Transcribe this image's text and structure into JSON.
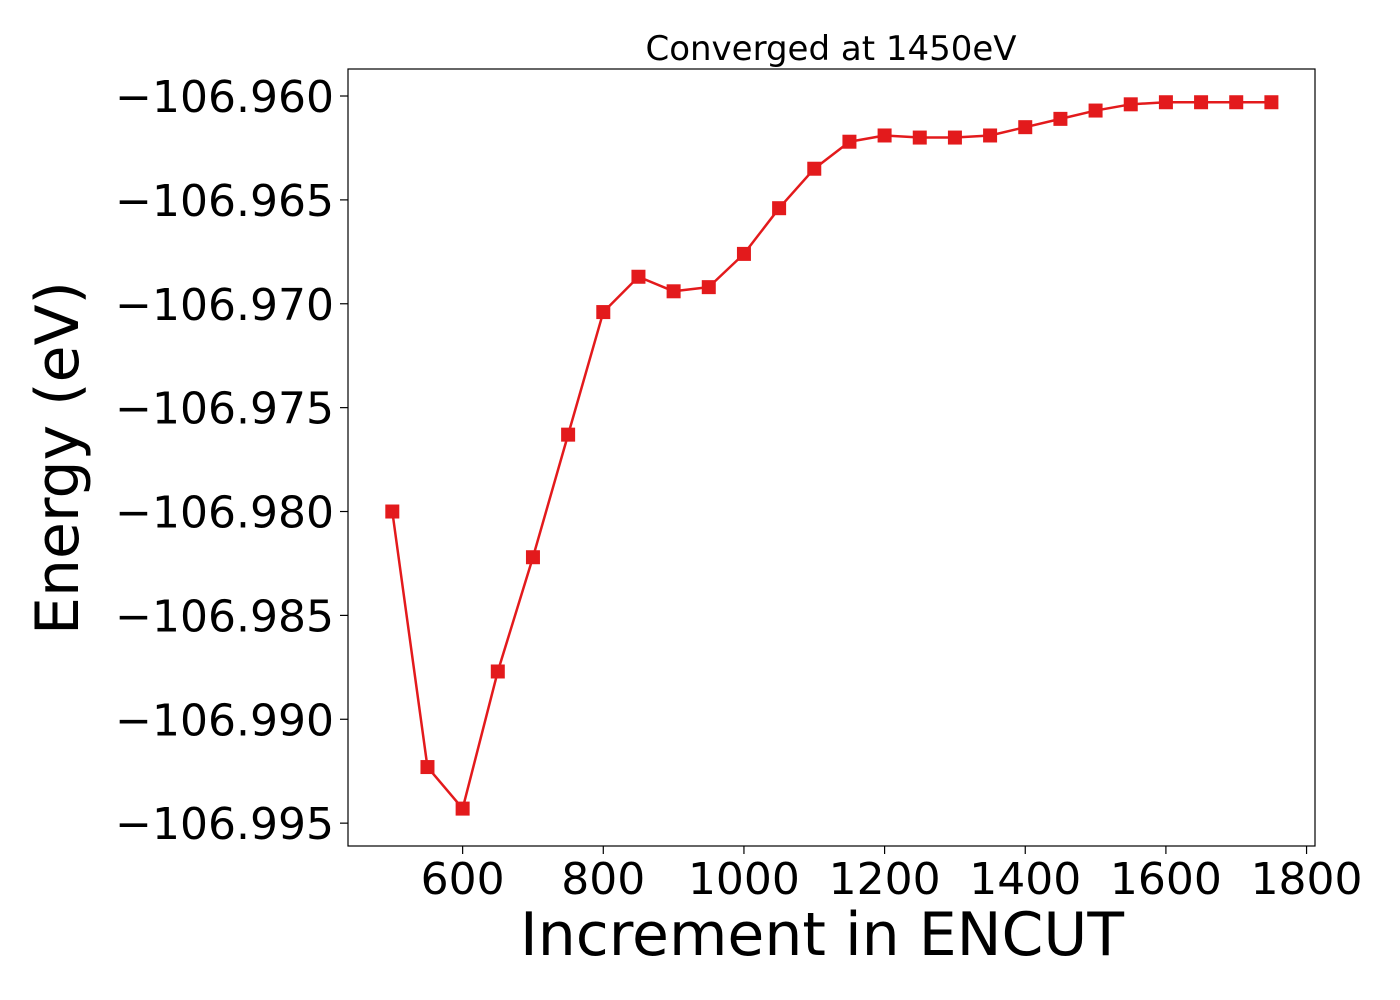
{
  "chart_data": {
    "type": "line",
    "title": "Converged at 1450eV",
    "xlabel": "Increment in ENCUT",
    "ylabel": "Energy (eV)",
    "xlim": [
      437,
      1812
    ],
    "ylim": [
      -106.9961,
      -106.9587
    ],
    "x_ticks": [
      600,
      800,
      1000,
      1200,
      1400,
      1600,
      1800
    ],
    "x_tick_labels": [
      "600",
      "800",
      "1000",
      "1200",
      "1400",
      "1600",
      "1800"
    ],
    "y_ticks": [
      -106.96,
      -106.965,
      -106.97,
      -106.975,
      -106.98,
      -106.985,
      -106.99,
      -106.995
    ],
    "y_tick_labels": [
      "−106.960",
      "−106.965",
      "−106.970",
      "−106.975",
      "−106.980",
      "−106.985",
      "−106.990",
      "−106.995"
    ],
    "grid": false,
    "series": [
      {
        "color": "#e31a1c",
        "marker": "square",
        "x": [
          500,
          550,
          600,
          650,
          700,
          750,
          800,
          850,
          900,
          950,
          1000,
          1050,
          1100,
          1150,
          1200,
          1250,
          1300,
          1350,
          1400,
          1450,
          1500,
          1550,
          1600,
          1650,
          1700,
          1750
        ],
        "y": [
          -106.98,
          -106.9923,
          -106.9943,
          -106.9877,
          -106.9822,
          -106.9763,
          -106.9704,
          -106.9687,
          -106.9694,
          -106.9692,
          -106.9676,
          -106.9654,
          -106.9635,
          -106.9622,
          -106.9619,
          -106.962,
          -106.962,
          -106.9619,
          -106.9615,
          -106.9611,
          -106.9607,
          -106.9604,
          -106.9603,
          -106.9603,
          -106.9603,
          -106.9603
        ]
      }
    ]
  }
}
